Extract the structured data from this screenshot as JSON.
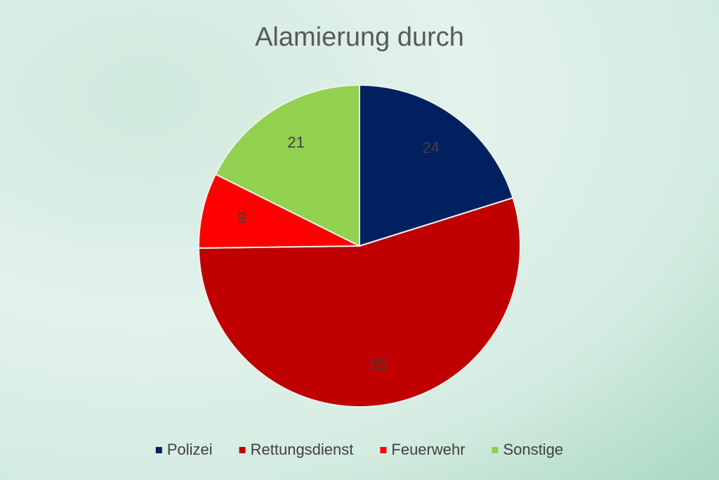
{
  "chart_data": {
    "type": "pie",
    "title": "Alamierung durch",
    "categories": [
      "Polizei",
      "Rettungsdienst",
      "Feuerwehr",
      "Sonstige"
    ],
    "values": [
      24,
      65,
      9,
      21
    ],
    "colors": [
      "#002060",
      "#c00000",
      "#ff0000",
      "#92d050"
    ],
    "legend": "bottom"
  }
}
